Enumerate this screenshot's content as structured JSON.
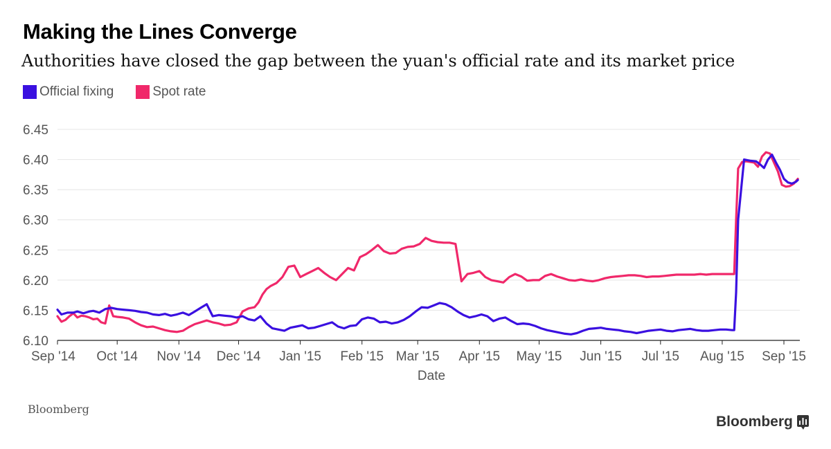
{
  "header": {
    "title": "Making the Lines Converge",
    "subtitle": "Authorities have closed the gap between the yuan's official rate and its market price"
  },
  "legend": {
    "items": [
      {
        "label": "Official fixing",
        "color": "#3a10e0"
      },
      {
        "label": "Spot rate",
        "color": "#f0286a"
      }
    ]
  },
  "footer": {
    "source": "Bloomberg",
    "logo_text": "Bloomberg"
  },
  "chart_data": {
    "type": "line",
    "title": "Making the Lines Converge",
    "subtitle": "Authorities have closed the gap between the yuan's official rate and its market price",
    "xlabel": "Date",
    "ylabel": "",
    "ylim": [
      6.1,
      6.45
    ],
    "yticks": [
      6.1,
      6.15,
      6.2,
      6.25,
      6.3,
      6.35,
      6.4,
      6.45
    ],
    "ytick_labels": [
      "6.10",
      "6.15",
      "6.20",
      "6.25",
      "6.30",
      "6.35",
      "6.40",
      "6.45"
    ],
    "x_unit": "days since 2014-09-01",
    "xlim": [
      0,
      373
    ],
    "xticks": [
      {
        "x": 0,
        "label": "Sep '14"
      },
      {
        "x": 30,
        "label": "Oct '14"
      },
      {
        "x": 61,
        "label": "Nov '14"
      },
      {
        "x": 91,
        "label": "Dec '14"
      },
      {
        "x": 122,
        "label": "Jan '15"
      },
      {
        "x": 153,
        "label": "Feb '15"
      },
      {
        "x": 181,
        "label": "Mar '15"
      },
      {
        "x": 212,
        "label": "Apr '15"
      },
      {
        "x": 242,
        "label": "May '15"
      },
      {
        "x": 273,
        "label": "Jun '15"
      },
      {
        "x": 303,
        "label": "Jul '15"
      },
      {
        "x": 334,
        "label": "Aug '15"
      },
      {
        "x": 365,
        "label": "Sep '15"
      }
    ],
    "grid": true,
    "legend_position": "top-left",
    "series": [
      {
        "name": "Official fixing",
        "color": "#3a10e0",
        "x": [
          0,
          2,
          5,
          8,
          10,
          13,
          16,
          18,
          21,
          24,
          27,
          30,
          33,
          36,
          39,
          42,
          45,
          48,
          51,
          54,
          57,
          60,
          63,
          66,
          69,
          72,
          75,
          78,
          81,
          84,
          87,
          90,
          93,
          96,
          99,
          102,
          105,
          108,
          111,
          114,
          117,
          120,
          123,
          126,
          129,
          132,
          135,
          138,
          141,
          144,
          147,
          150,
          153,
          156,
          159,
          162,
          165,
          168,
          171,
          174,
          177,
          180,
          183,
          186,
          189,
          192,
          195,
          198,
          201,
          204,
          207,
          210,
          213,
          216,
          219,
          222,
          225,
          228,
          231,
          234,
          237,
          240,
          243,
          246,
          249,
          252,
          255,
          258,
          261,
          264,
          267,
          270,
          273,
          276,
          279,
          282,
          285,
          288,
          291,
          294,
          297,
          300,
          303,
          306,
          309,
          312,
          315,
          318,
          321,
          324,
          327,
          330,
          333,
          336,
          339,
          340,
          341,
          342,
          345,
          348,
          351,
          353,
          355,
          357,
          359,
          361,
          363,
          365,
          367,
          369,
          371,
          372
        ],
        "y": [
          6.151,
          6.143,
          6.146,
          6.146,
          6.148,
          6.145,
          6.148,
          6.149,
          6.146,
          6.152,
          6.154,
          6.152,
          6.151,
          6.15,
          6.149,
          6.147,
          6.146,
          6.143,
          6.142,
          6.144,
          6.141,
          6.143,
          6.146,
          6.142,
          6.148,
          6.154,
          6.16,
          6.14,
          6.142,
          6.141,
          6.14,
          6.138,
          6.14,
          6.135,
          6.133,
          6.14,
          6.128,
          6.12,
          6.118,
          6.116,
          6.121,
          6.123,
          6.125,
          6.12,
          6.121,
          6.124,
          6.127,
          6.13,
          6.123,
          6.12,
          6.124,
          6.125,
          6.135,
          6.138,
          6.136,
          6.13,
          6.131,
          6.128,
          6.13,
          6.134,
          6.14,
          6.148,
          6.155,
          6.154,
          6.158,
          6.162,
          6.16,
          6.155,
          6.148,
          6.142,
          6.138,
          6.14,
          6.143,
          6.14,
          6.132,
          6.136,
          6.138,
          6.132,
          6.127,
          6.128,
          6.127,
          6.124,
          6.12,
          6.117,
          6.115,
          6.113,
          6.111,
          6.11,
          6.112,
          6.116,
          6.119,
          6.12,
          6.121,
          6.119,
          6.118,
          6.117,
          6.115,
          6.114,
          6.112,
          6.114,
          6.116,
          6.117,
          6.118,
          6.116,
          6.115,
          6.117,
          6.118,
          6.119,
          6.117,
          6.116,
          6.116,
          6.117,
          6.118,
          6.118,
          6.117,
          6.117,
          6.18,
          6.3,
          6.4,
          6.398,
          6.397,
          6.392,
          6.386,
          6.4,
          6.408,
          6.395,
          6.383,
          6.368,
          6.362,
          6.36,
          6.363,
          6.366
        ]
      },
      {
        "name": "Spot rate",
        "color": "#f0286a",
        "x": [
          0,
          2,
          4,
          6,
          8,
          10,
          12,
          14,
          16,
          18,
          20,
          22,
          24,
          26,
          28,
          30,
          33,
          36,
          39,
          42,
          45,
          48,
          51,
          54,
          57,
          60,
          63,
          66,
          69,
          72,
          75,
          78,
          81,
          84,
          87,
          90,
          93,
          96,
          99,
          101,
          103,
          105,
          107,
          110,
          113,
          116,
          119,
          122,
          125,
          128,
          131,
          134,
          137,
          140,
          143,
          146,
          149,
          152,
          155,
          158,
          161,
          164,
          167,
          170,
          173,
          176,
          179,
          182,
          185,
          188,
          191,
          194,
          197,
          200,
          203,
          206,
          209,
          212,
          215,
          218,
          221,
          224,
          227,
          230,
          233,
          236,
          239,
          242,
          245,
          248,
          251,
          254,
          257,
          260,
          263,
          266,
          269,
          272,
          275,
          278,
          281,
          284,
          287,
          290,
          293,
          296,
          299,
          302,
          305,
          308,
          311,
          314,
          317,
          320,
          323,
          326,
          329,
          332,
          335,
          338,
          340,
          341,
          342,
          344,
          346,
          348,
          350,
          352,
          354,
          356,
          358,
          360,
          362,
          364,
          366,
          368,
          370,
          372
        ],
        "y": [
          6.14,
          6.131,
          6.134,
          6.14,
          6.145,
          6.138,
          6.141,
          6.14,
          6.138,
          6.135,
          6.136,
          6.13,
          6.128,
          6.158,
          6.14,
          6.139,
          6.138,
          6.136,
          6.13,
          6.125,
          6.122,
          6.123,
          6.12,
          6.117,
          6.115,
          6.114,
          6.116,
          6.122,
          6.127,
          6.13,
          6.133,
          6.13,
          6.128,
          6.125,
          6.126,
          6.13,
          6.148,
          6.153,
          6.155,
          6.163,
          6.176,
          6.185,
          6.19,
          6.195,
          6.205,
          6.222,
          6.224,
          6.205,
          6.21,
          6.215,
          6.22,
          6.212,
          6.205,
          6.2,
          6.21,
          6.22,
          6.216,
          6.238,
          6.243,
          6.25,
          6.258,
          6.248,
          6.244,
          6.245,
          6.252,
          6.255,
          6.256,
          6.26,
          6.27,
          6.265,
          6.263,
          6.262,
          6.262,
          6.26,
          6.198,
          6.21,
          6.212,
          6.215,
          6.205,
          6.2,
          6.198,
          6.196,
          6.205,
          6.21,
          6.206,
          6.199,
          6.2,
          6.2,
          6.207,
          6.21,
          6.206,
          6.203,
          6.2,
          6.199,
          6.201,
          6.199,
          6.198,
          6.2,
          6.203,
          6.205,
          6.206,
          6.207,
          6.208,
          6.208,
          6.207,
          6.205,
          6.206,
          6.206,
          6.207,
          6.208,
          6.209,
          6.209,
          6.209,
          6.209,
          6.21,
          6.209,
          6.21,
          6.21,
          6.21,
          6.21,
          6.21,
          6.3,
          6.385,
          6.396,
          6.397,
          6.396,
          6.395,
          6.388,
          6.405,
          6.412,
          6.41,
          6.395,
          6.38,
          6.358,
          6.355,
          6.356,
          6.36,
          6.368
        ]
      }
    ]
  }
}
